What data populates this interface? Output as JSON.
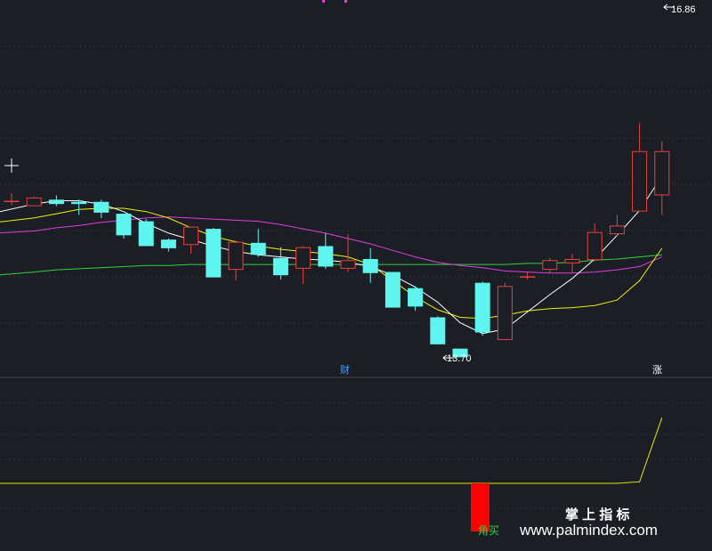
{
  "chart_data": [
    {
      "type": "candlestick",
      "panel": "main",
      "x": [
        1,
        2,
        3,
        4,
        5,
        6,
        7,
        8,
        9,
        10,
        11,
        12,
        13,
        14,
        15,
        16,
        17,
        18,
        19,
        20,
        21,
        22,
        23,
        24,
        25,
        26,
        27,
        28,
        29,
        30
      ],
      "ylim": [
        13.59,
        16.93
      ],
      "candles": [
        {
          "o": 15.07,
          "h": 15.14,
          "l": 15.03,
          "c": 15.07
        },
        {
          "o": 15.02,
          "h": 15.11,
          "l": 15.02,
          "c": 15.1
        },
        {
          "o": 15.08,
          "h": 15.12,
          "l": 15.02,
          "c": 15.04
        },
        {
          "o": 15.06,
          "h": 15.08,
          "l": 14.94,
          "c": 15.04
        },
        {
          "o": 15.06,
          "h": 15.08,
          "l": 14.91,
          "c": 14.96
        },
        {
          "o": 14.95,
          "h": 14.93,
          "l": 14.72,
          "c": 14.75
        },
        {
          "o": 14.88,
          "h": 14.9,
          "l": 14.65,
          "c": 14.65
        },
        {
          "o": 14.71,
          "h": 14.72,
          "l": 14.6,
          "c": 14.63
        },
        {
          "o": 14.66,
          "h": 14.83,
          "l": 14.58,
          "c": 14.83
        },
        {
          "o": 14.81,
          "h": 14.82,
          "l": 14.37,
          "c": 14.36
        },
        {
          "o": 14.43,
          "h": 14.7,
          "l": 14.33,
          "c": 14.69
        },
        {
          "o": 14.68,
          "h": 14.81,
          "l": 14.55,
          "c": 14.57
        },
        {
          "o": 14.54,
          "h": 14.64,
          "l": 14.34,
          "c": 14.38
        },
        {
          "o": 14.44,
          "h": 14.65,
          "l": 14.3,
          "c": 14.64
        },
        {
          "o": 14.65,
          "h": 14.77,
          "l": 14.44,
          "c": 14.46
        },
        {
          "o": 14.44,
          "h": 14.76,
          "l": 14.41,
          "c": 14.52
        },
        {
          "o": 14.53,
          "h": 14.63,
          "l": 14.31,
          "c": 14.4
        },
        {
          "o": 14.41,
          "h": 14.38,
          "l": 14.09,
          "c": 14.08
        },
        {
          "o": 14.26,
          "h": 14.28,
          "l": 14.05,
          "c": 14.09
        },
        {
          "o": 13.99,
          "h": 14.0,
          "l": 13.74,
          "c": 13.74
        },
        {
          "o": 13.7,
          "h": 13.7,
          "l": 13.62,
          "c": 13.62
        },
        {
          "o": 14.31,
          "h": 14.32,
          "l": 13.82,
          "c": 13.85
        },
        {
          "o": 13.78,
          "h": 14.31,
          "l": 13.78,
          "c": 14.28
        },
        {
          "o": 14.37,
          "h": 14.41,
          "l": 14.34,
          "c": 14.37
        },
        {
          "o": 14.43,
          "h": 14.54,
          "l": 14.4,
          "c": 14.52
        },
        {
          "o": 14.49,
          "h": 14.58,
          "l": 14.4,
          "c": 14.53
        },
        {
          "o": 14.52,
          "h": 14.86,
          "l": 14.51,
          "c": 14.78
        },
        {
          "o": 14.76,
          "h": 14.94,
          "l": 14.74,
          "c": 14.84
        },
        {
          "o": 14.97,
          "h": 15.79,
          "l": 14.97,
          "c": 15.53
        },
        {
          "o": 15.12,
          "h": 15.62,
          "l": 14.94,
          "c": 15.53
        }
      ],
      "ma_white": [
        [
          0,
          14.96
        ],
        [
          1,
          15.04
        ],
        [
          2,
          15.07
        ],
        [
          3,
          15.07
        ],
        [
          4,
          15.04
        ],
        [
          5,
          14.97
        ],
        [
          6,
          14.86
        ],
        [
          7,
          14.77
        ],
        [
          8,
          14.71
        ],
        [
          9,
          14.65
        ],
        [
          10,
          14.6
        ],
        [
          11,
          14.57
        ],
        [
          12,
          14.55
        ],
        [
          13,
          14.53
        ],
        [
          14,
          14.52
        ],
        [
          15,
          14.5
        ],
        [
          16,
          14.46
        ],
        [
          17,
          14.38
        ],
        [
          18,
          14.27
        ],
        [
          19,
          14.13
        ],
        [
          20,
          13.94
        ],
        [
          21,
          13.84
        ],
        [
          22,
          13.88
        ],
        [
          23,
          14.04
        ],
        [
          24,
          14.2
        ],
        [
          25,
          14.35
        ],
        [
          26,
          14.53
        ],
        [
          27,
          14.75
        ],
        [
          28,
          14.98
        ],
        [
          29,
          15.3
        ]
      ],
      "ma_yellow": [
        [
          0,
          14.87
        ],
        [
          1,
          14.91
        ],
        [
          2,
          14.95
        ],
        [
          3,
          14.99
        ],
        [
          4,
          15.0
        ],
        [
          5,
          15.0
        ],
        [
          6,
          14.97
        ],
        [
          7,
          14.91
        ],
        [
          8,
          14.82
        ],
        [
          9,
          14.74
        ],
        [
          10,
          14.69
        ],
        [
          11,
          14.65
        ],
        [
          12,
          14.62
        ],
        [
          13,
          14.6
        ],
        [
          14,
          14.58
        ],
        [
          15,
          14.55
        ],
        [
          16,
          14.48
        ],
        [
          17,
          14.33
        ],
        [
          18,
          14.18
        ],
        [
          19,
          14.06
        ],
        [
          20,
          13.99
        ],
        [
          21,
          13.98
        ],
        [
          22,
          14.01
        ],
        [
          23,
          14.05
        ],
        [
          24,
          14.07
        ],
        [
          25,
          14.08
        ],
        [
          26,
          14.1
        ],
        [
          27,
          14.15
        ],
        [
          28,
          14.33
        ],
        [
          29,
          14.63
        ]
      ],
      "ma_magenta": [
        [
          0,
          14.77
        ],
        [
          1,
          14.79
        ],
        [
          2,
          14.82
        ],
        [
          3,
          14.84
        ],
        [
          4,
          14.87
        ],
        [
          5,
          14.89
        ],
        [
          6,
          14.91
        ],
        [
          7,
          14.92
        ],
        [
          8,
          14.91
        ],
        [
          9,
          14.9
        ],
        [
          10,
          14.89
        ],
        [
          11,
          14.88
        ],
        [
          12,
          14.85
        ],
        [
          13,
          14.81
        ],
        [
          14,
          14.77
        ],
        [
          15,
          14.72
        ],
        [
          16,
          14.67
        ],
        [
          17,
          14.61
        ],
        [
          18,
          14.55
        ],
        [
          19,
          14.5
        ],
        [
          20,
          14.47
        ],
        [
          21,
          14.45
        ],
        [
          22,
          14.42
        ],
        [
          23,
          14.41
        ],
        [
          24,
          14.4
        ],
        [
          25,
          14.4
        ],
        [
          26,
          14.41
        ],
        [
          27,
          14.43
        ],
        [
          28,
          14.46
        ],
        [
          29,
          14.55
        ]
      ],
      "ma_green": [
        [
          0,
          14.38
        ],
        [
          1,
          14.41
        ],
        [
          2,
          14.43
        ],
        [
          3,
          14.44
        ],
        [
          4,
          14.45
        ],
        [
          5,
          14.46
        ],
        [
          6,
          14.47
        ],
        [
          7,
          14.47
        ],
        [
          8,
          14.48
        ],
        [
          9,
          14.48
        ],
        [
          10,
          14.48
        ],
        [
          11,
          14.48
        ],
        [
          12,
          14.48
        ],
        [
          13,
          14.48
        ],
        [
          14,
          14.48
        ],
        [
          15,
          14.48
        ],
        [
          16,
          14.48
        ],
        [
          17,
          14.48
        ],
        [
          18,
          14.48
        ],
        [
          19,
          14.48
        ],
        [
          20,
          14.48
        ],
        [
          21,
          14.48
        ],
        [
          22,
          14.48
        ],
        [
          23,
          14.49
        ],
        [
          24,
          14.49
        ],
        [
          25,
          14.5
        ],
        [
          26,
          14.52
        ],
        [
          27,
          14.53
        ],
        [
          28,
          14.55
        ],
        [
          29,
          14.57
        ]
      ],
      "high_label": "16.86",
      "low_label": "13.70",
      "grid": true
    },
    {
      "type": "line",
      "panel": "indicator",
      "ylim": [
        0,
        1
      ],
      "values": [
        0,
        0,
        0,
        0,
        0,
        0,
        0,
        0,
        0,
        0,
        0,
        0,
        0,
        0,
        0,
        0,
        0,
        0,
        0,
        0,
        0,
        0,
        0,
        0,
        0,
        0,
        0,
        0,
        0.02,
        0.82
      ],
      "grid": true
    }
  ],
  "markers": {
    "cai_label": "财",
    "zhang_label": "涨",
    "signal_label": "角买"
  },
  "watermark": {
    "line1": "掌 上 指 标",
    "line2": "www.palmindex.com"
  },
  "colors": {
    "background": "#1c1e25",
    "up": "#e8413c",
    "down": "#5ef5ef",
    "ma_white": "#ffffff",
    "ma_yellow": "#f2f000",
    "ma_magenta": "#e23ce0",
    "ma_green": "#2dd63a",
    "grid": "#2c3443"
  }
}
